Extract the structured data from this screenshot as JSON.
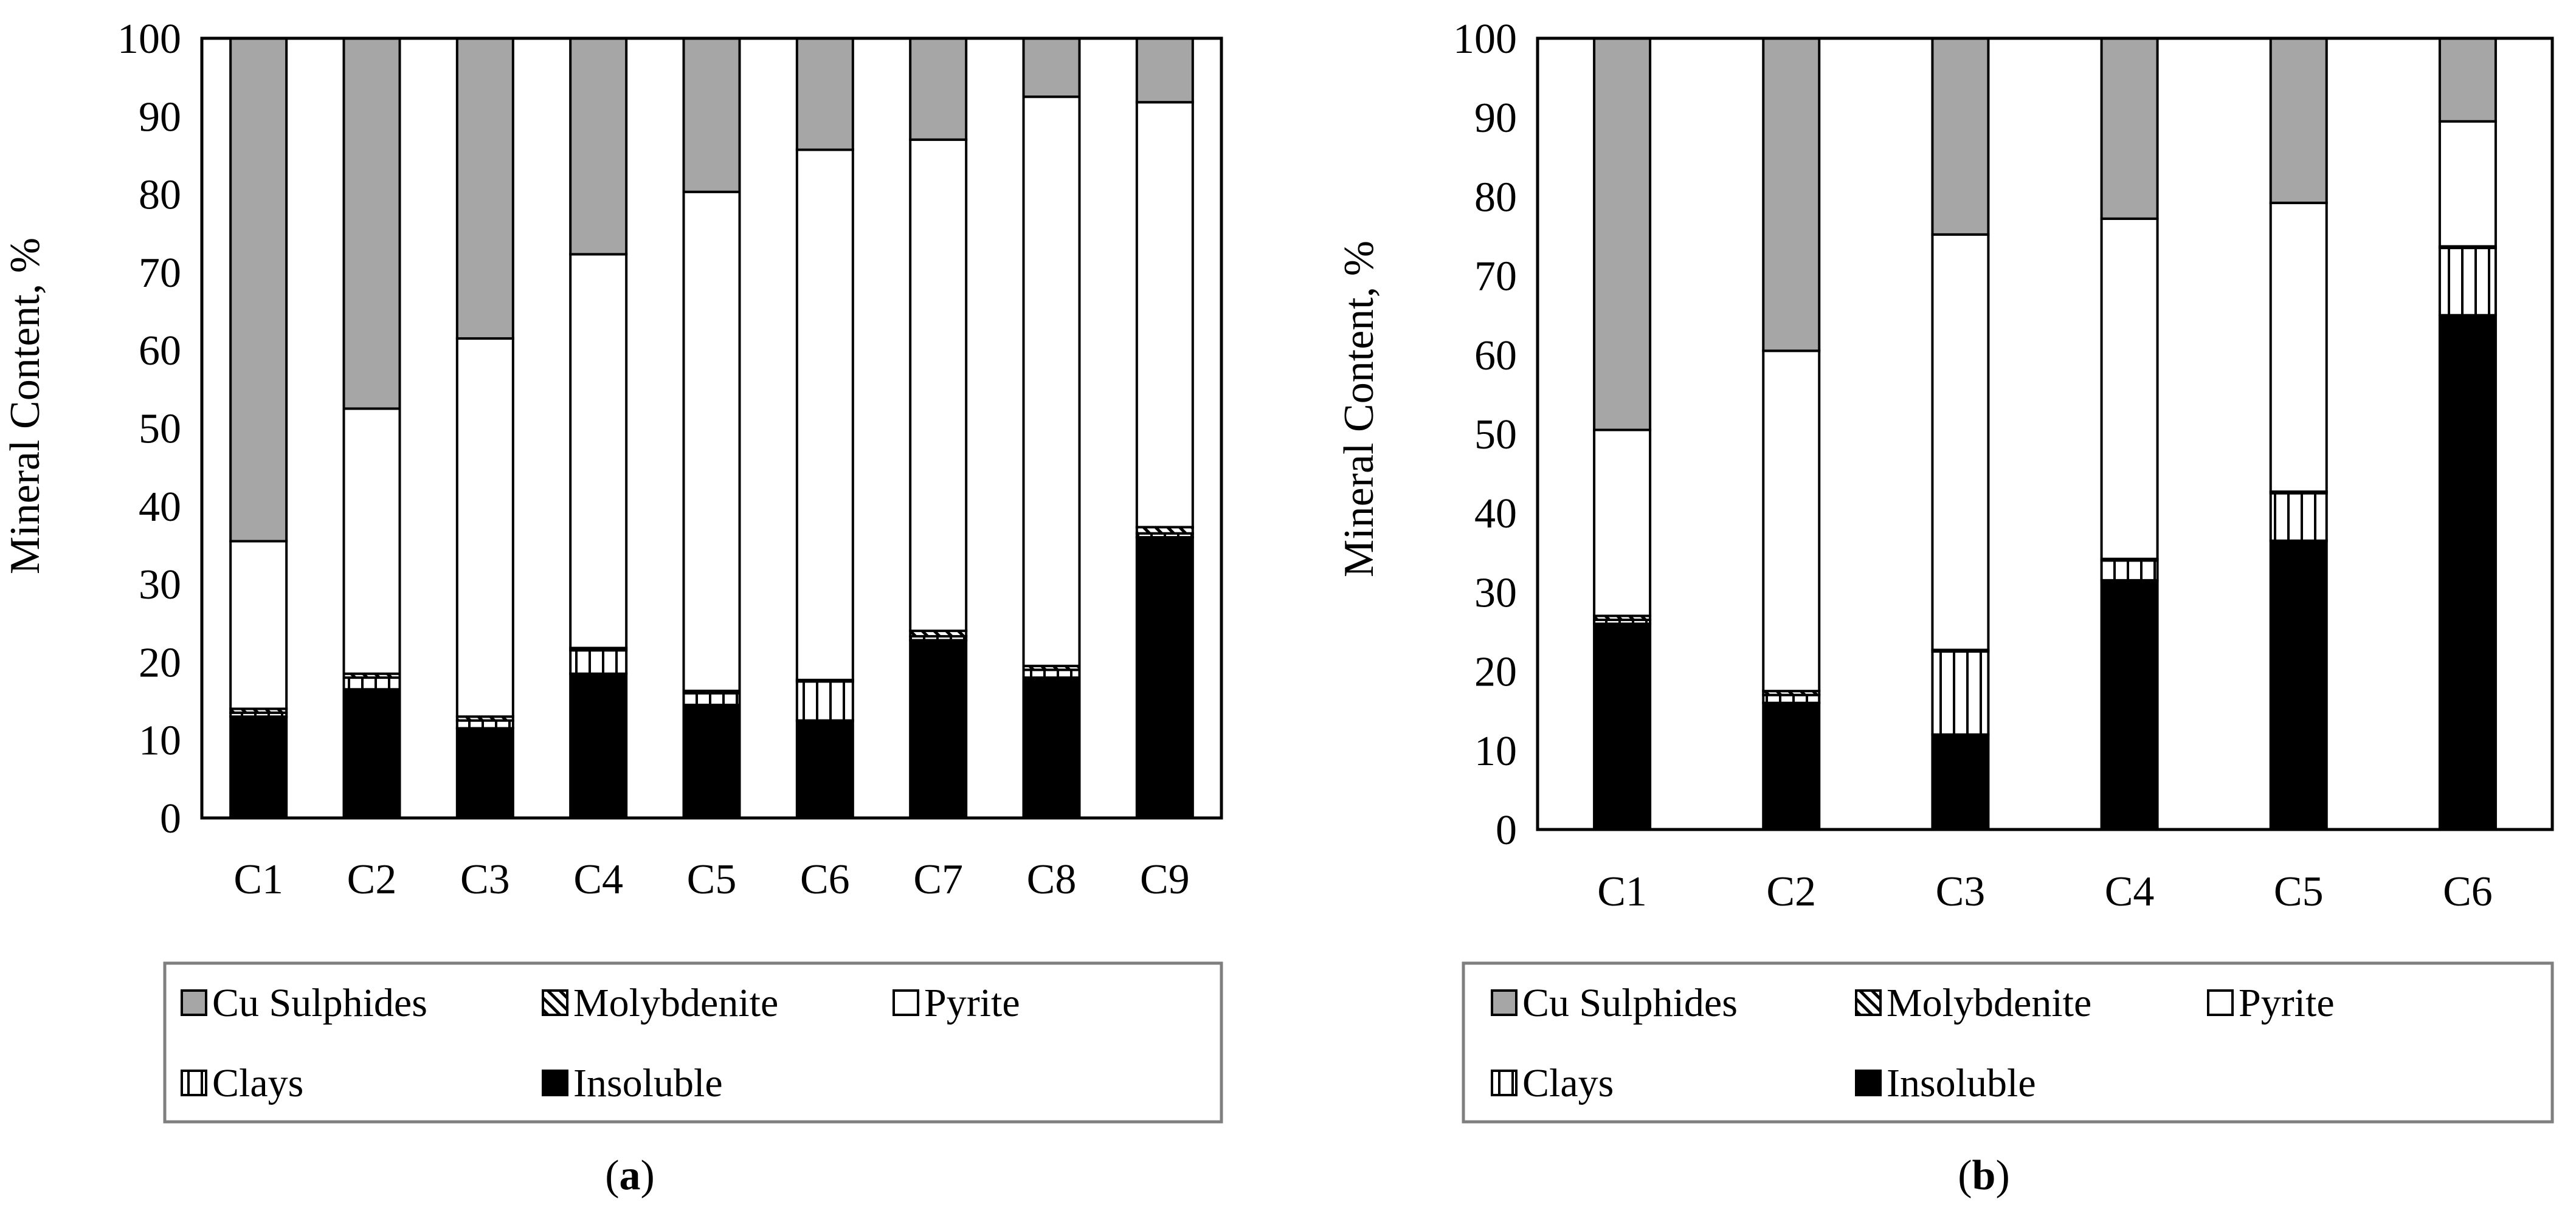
{
  "chart_data": [
    {
      "type": "bar",
      "stacked": true,
      "panel_label": "a",
      "title": "",
      "xlabel": "",
      "ylabel": "Mineral Content, %",
      "ylim": [
        0,
        100
      ],
      "yticks": [
        0,
        10,
        20,
        30,
        40,
        50,
        60,
        70,
        80,
        90,
        100
      ],
      "grid": false,
      "legend_position": "bottom",
      "categories": [
        "C1",
        "C2",
        "C3",
        "C4",
        "C5",
        "C6",
        "C7",
        "C8",
        "C9"
      ],
      "series": [
        {
          "name": "Insoluble",
          "values": [
            13.0,
            16.5,
            11.5,
            18.5,
            14.5,
            12.5,
            22.8,
            18.0,
            36.0
          ]
        },
        {
          "name": "Clays",
          "values": [
            0.5,
            1.5,
            1.0,
            3.0,
            1.5,
            5.0,
            0.5,
            1.0,
            0.5
          ]
        },
        {
          "name": "Molybdenite",
          "values": [
            0.5,
            0.5,
            0.5,
            0.3,
            0.3,
            0.2,
            0.7,
            0.5,
            0.8
          ]
        },
        {
          "name": "Pyrite",
          "values": [
            21.5,
            34.0,
            48.5,
            50.5,
            64.0,
            68.0,
            63.0,
            73.0,
            54.5
          ]
        },
        {
          "name": "Cu Sulphides",
          "values": [
            64.5,
            47.5,
            38.5,
            27.7,
            19.7,
            14.3,
            13.0,
            7.5,
            8.2
          ]
        }
      ],
      "legend": [
        "Cu Sulphides",
        "Molybdenite",
        "Pyrite",
        "Clays",
        "Insoluble"
      ]
    },
    {
      "type": "bar",
      "stacked": true,
      "panel_label": "b",
      "title": "",
      "xlabel": "",
      "ylabel": "Mineral Content, %",
      "ylim": [
        0,
        100
      ],
      "yticks": [
        0,
        10,
        20,
        30,
        40,
        50,
        60,
        70,
        80,
        90,
        100
      ],
      "grid": false,
      "legend_position": "bottom",
      "categories": [
        "C1",
        "C2",
        "C3",
        "C4",
        "C5",
        "C6"
      ],
      "series": [
        {
          "name": "Insoluble",
          "values": [
            26.0,
            16.0,
            12.0,
            31.5,
            36.5,
            65.0
          ]
        },
        {
          "name": "Clays",
          "values": [
            0.5,
            1.0,
            10.5,
            2.5,
            6.0,
            8.5
          ]
        },
        {
          "name": "Molybdenite",
          "values": [
            0.5,
            0.5,
            0.2,
            0.2,
            0.2,
            0.2
          ]
        },
        {
          "name": "Pyrite",
          "values": [
            23.5,
            43.0,
            52.5,
            43.0,
            36.5,
            15.8
          ]
        },
        {
          "name": "Cu Sulphides",
          "values": [
            49.5,
            39.5,
            24.8,
            22.8,
            20.8,
            10.5
          ]
        }
      ],
      "legend": [
        "Cu Sulphides",
        "Molybdenite",
        "Pyrite",
        "Clays",
        "Insoluble"
      ]
    }
  ],
  "series_colors": {
    "Cu Sulphides": "#a6a6a6",
    "Molybdenite": "#ffffff",
    "Pyrite": "#ffffff",
    "Clays": "#ffffff",
    "Insoluble": "#000000"
  },
  "series_patterns": {
    "Cu Sulphides": "solid",
    "Molybdenite": "diagonal-stripes",
    "Pyrite": "solid",
    "Clays": "vertical-stripes",
    "Insoluble": "solid"
  }
}
